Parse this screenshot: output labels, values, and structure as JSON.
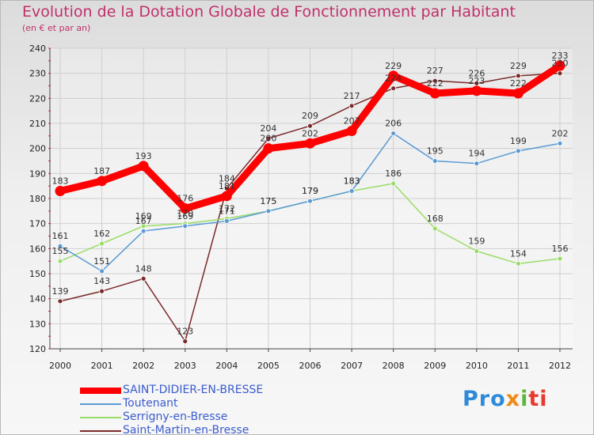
{
  "header": {
    "title": "Evolution de la Dotation Globale de Fonctionnement par Habitant",
    "subtitle": "(en € et par an)"
  },
  "chart_data": {
    "type": "line",
    "title": "Evolution de la Dotation Globale de Fonctionnement par Habitant",
    "subtitle": "(en € et par an)",
    "xlabel": "",
    "ylabel": "",
    "ylim": [
      120,
      240
    ],
    "yticks": [
      120,
      130,
      140,
      150,
      160,
      170,
      180,
      190,
      200,
      210,
      220,
      230,
      240
    ],
    "grid": true,
    "legend_position": "bottom-left",
    "categories": [
      "2000",
      "2001",
      "2002",
      "2003",
      "2004",
      "2005",
      "2006",
      "2007",
      "2008",
      "2009",
      "2010",
      "2011",
      "2012"
    ],
    "series": [
      {
        "name": "SAINT-DIDIER-EN-BRESSE",
        "color": "#ff0000",
        "values": [
          183,
          187,
          193,
          176,
          181,
          200,
          202,
          207,
          229,
          222,
          223,
          222,
          233
        ]
      },
      {
        "name": "Toutenant",
        "color": "#5b9bd5",
        "values": [
          161,
          151,
          167,
          169,
          171,
          175,
          179,
          183,
          206,
          195,
          194,
          199,
          202
        ]
      },
      {
        "name": "Serrigny-en-Bresse",
        "color": "#99dd66",
        "values": [
          155,
          162,
          169,
          170,
          172,
          175,
          179,
          183,
          186,
          168,
          159,
          154,
          156
        ]
      },
      {
        "name": "Saint-Martin-en-Bresse",
        "color": "#7a2a2a",
        "values": [
          139,
          143,
          148,
          123,
          184,
          204,
          209,
          217,
          224,
          227,
          226,
          229,
          230
        ]
      }
    ]
  },
  "logo": {
    "part1": "Pro",
    "part2": "x",
    "part3": "i",
    "part4": "ti"
  }
}
